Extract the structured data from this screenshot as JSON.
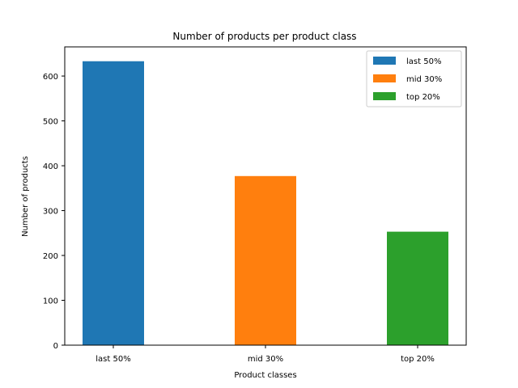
{
  "chart_data": {
    "type": "bar",
    "title": "Number of products per product class",
    "xlabel": "Product classes",
    "ylabel": "Number of products",
    "categories": [
      "last 50%",
      "mid 30%",
      "top 20%"
    ],
    "values": [
      633,
      377,
      253
    ],
    "colors": [
      "#1f77b4",
      "#ff7f0e",
      "#2ca02c"
    ],
    "ylim": [
      0,
      665
    ],
    "yticks": [
      0,
      100,
      200,
      300,
      400,
      500,
      600
    ],
    "grid": false,
    "legend": {
      "placement": "top-right",
      "entries": [
        "last 50%",
        "mid 30%",
        "top 20%"
      ]
    }
  }
}
